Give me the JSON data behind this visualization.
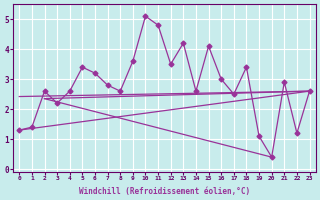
{
  "title": "",
  "xlabel": "Windchill (Refroidissement éolien,°C)",
  "ylabel": "",
  "background_color": "#c8ecec",
  "grid_color": "#ffffff",
  "line_color": "#993399",
  "xlim": [
    -0.5,
    23.5
  ],
  "ylim": [
    -0.1,
    5.5
  ],
  "xticks": [
    0,
    1,
    2,
    3,
    4,
    5,
    6,
    7,
    8,
    9,
    10,
    11,
    12,
    13,
    14,
    15,
    16,
    17,
    18,
    19,
    20,
    21,
    22,
    23
  ],
  "yticks": [
    0,
    1,
    2,
    3,
    4,
    5
  ],
  "scatter_x": [
    0,
    1,
    2,
    3,
    4,
    5,
    6,
    7,
    8,
    9,
    10,
    11,
    12,
    13,
    14,
    15,
    16,
    17,
    18,
    19,
    20,
    21,
    22,
    23
  ],
  "scatter_y": [
    1.3,
    1.4,
    2.6,
    2.2,
    2.6,
    3.4,
    3.2,
    2.8,
    2.6,
    3.6,
    5.1,
    4.8,
    3.5,
    4.2,
    2.6,
    4.1,
    3.0,
    2.5,
    3.4,
    1.1,
    0.4,
    2.9,
    1.2,
    2.6
  ],
  "trend_lines": [
    {
      "x": [
        0,
        23
      ],
      "y": [
        1.3,
        2.6
      ]
    },
    {
      "x": [
        2,
        20
      ],
      "y": [
        2.35,
        0.4
      ]
    },
    {
      "x": [
        2,
        23
      ],
      "y": [
        2.35,
        2.6
      ]
    },
    {
      "x": [
        0,
        23
      ],
      "y": [
        2.42,
        2.6
      ]
    }
  ]
}
